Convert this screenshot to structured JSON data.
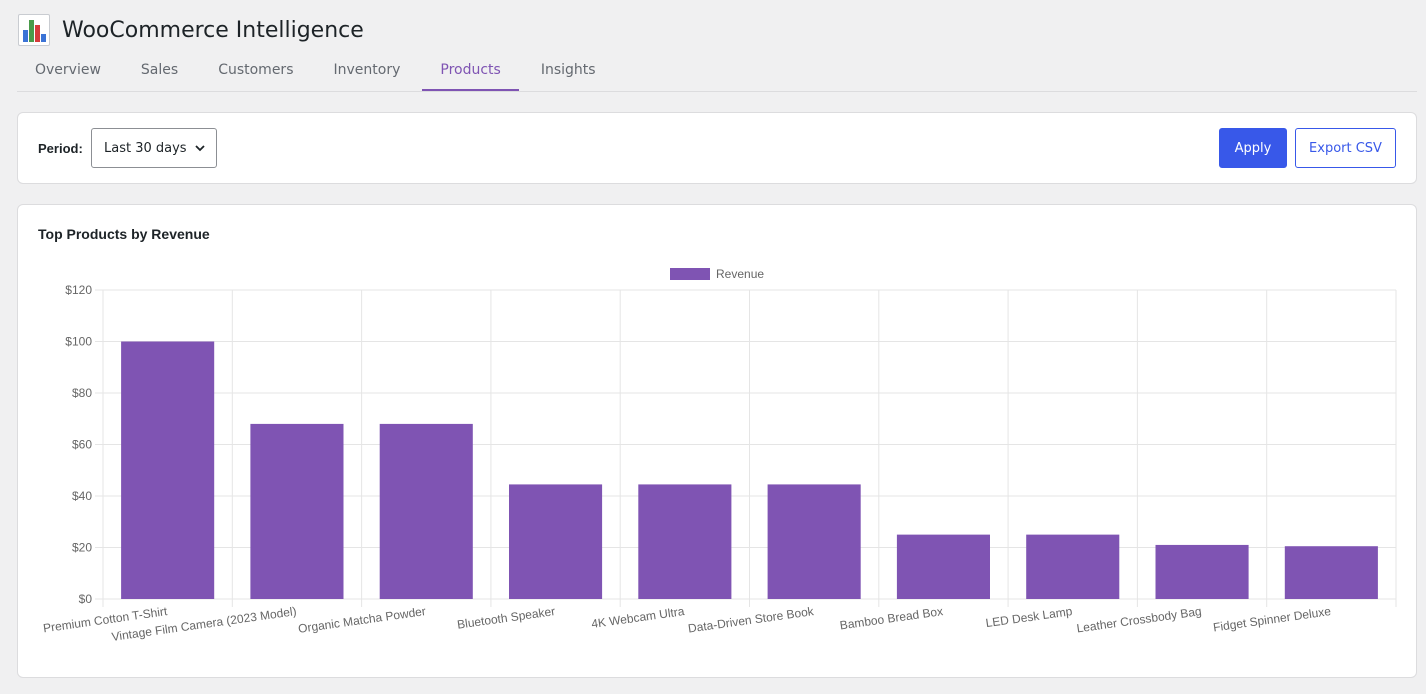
{
  "app": {
    "title": "WooCommerce Intelligence",
    "logo_icon": "bar-chart-icon"
  },
  "tabs": [
    {
      "label": "Overview",
      "active": false
    },
    {
      "label": "Sales",
      "active": false
    },
    {
      "label": "Customers",
      "active": false
    },
    {
      "label": "Inventory",
      "active": false
    },
    {
      "label": "Products",
      "active": true
    },
    {
      "label": "Insights",
      "active": false
    }
  ],
  "filters": {
    "period_label": "Period:",
    "period_value": "Last 30 days",
    "apply_label": "Apply",
    "export_label": "Export CSV"
  },
  "chart": {
    "title": "Top Products by Revenue"
  },
  "colors": {
    "accent": "#7f54b3",
    "bar": "#7f54b3",
    "button": "#3858e9"
  },
  "chart_data": {
    "type": "bar",
    "categories": [
      "Premium Cotton T-Shirt",
      "Vintage Film Camera (2023 Model)",
      "Organic Matcha Powder",
      "Bluetooth Speaker",
      "4K Webcam Ultra",
      "Data-Driven Store Book",
      "Bamboo Bread Box",
      "LED Desk Lamp",
      "Leather Crossbody Bag",
      "Fidget Spinner Deluxe"
    ],
    "series": [
      {
        "name": "Revenue",
        "values": [
          100,
          68,
          68,
          44.5,
          44.5,
          44.5,
          25,
          25,
          21,
          20.5
        ]
      }
    ],
    "yticks": [
      "$0",
      "$20",
      "$40",
      "$60",
      "$80",
      "$100",
      "$120"
    ],
    "ylim": [
      0,
      120
    ],
    "legend": "top-center",
    "grid": true
  }
}
